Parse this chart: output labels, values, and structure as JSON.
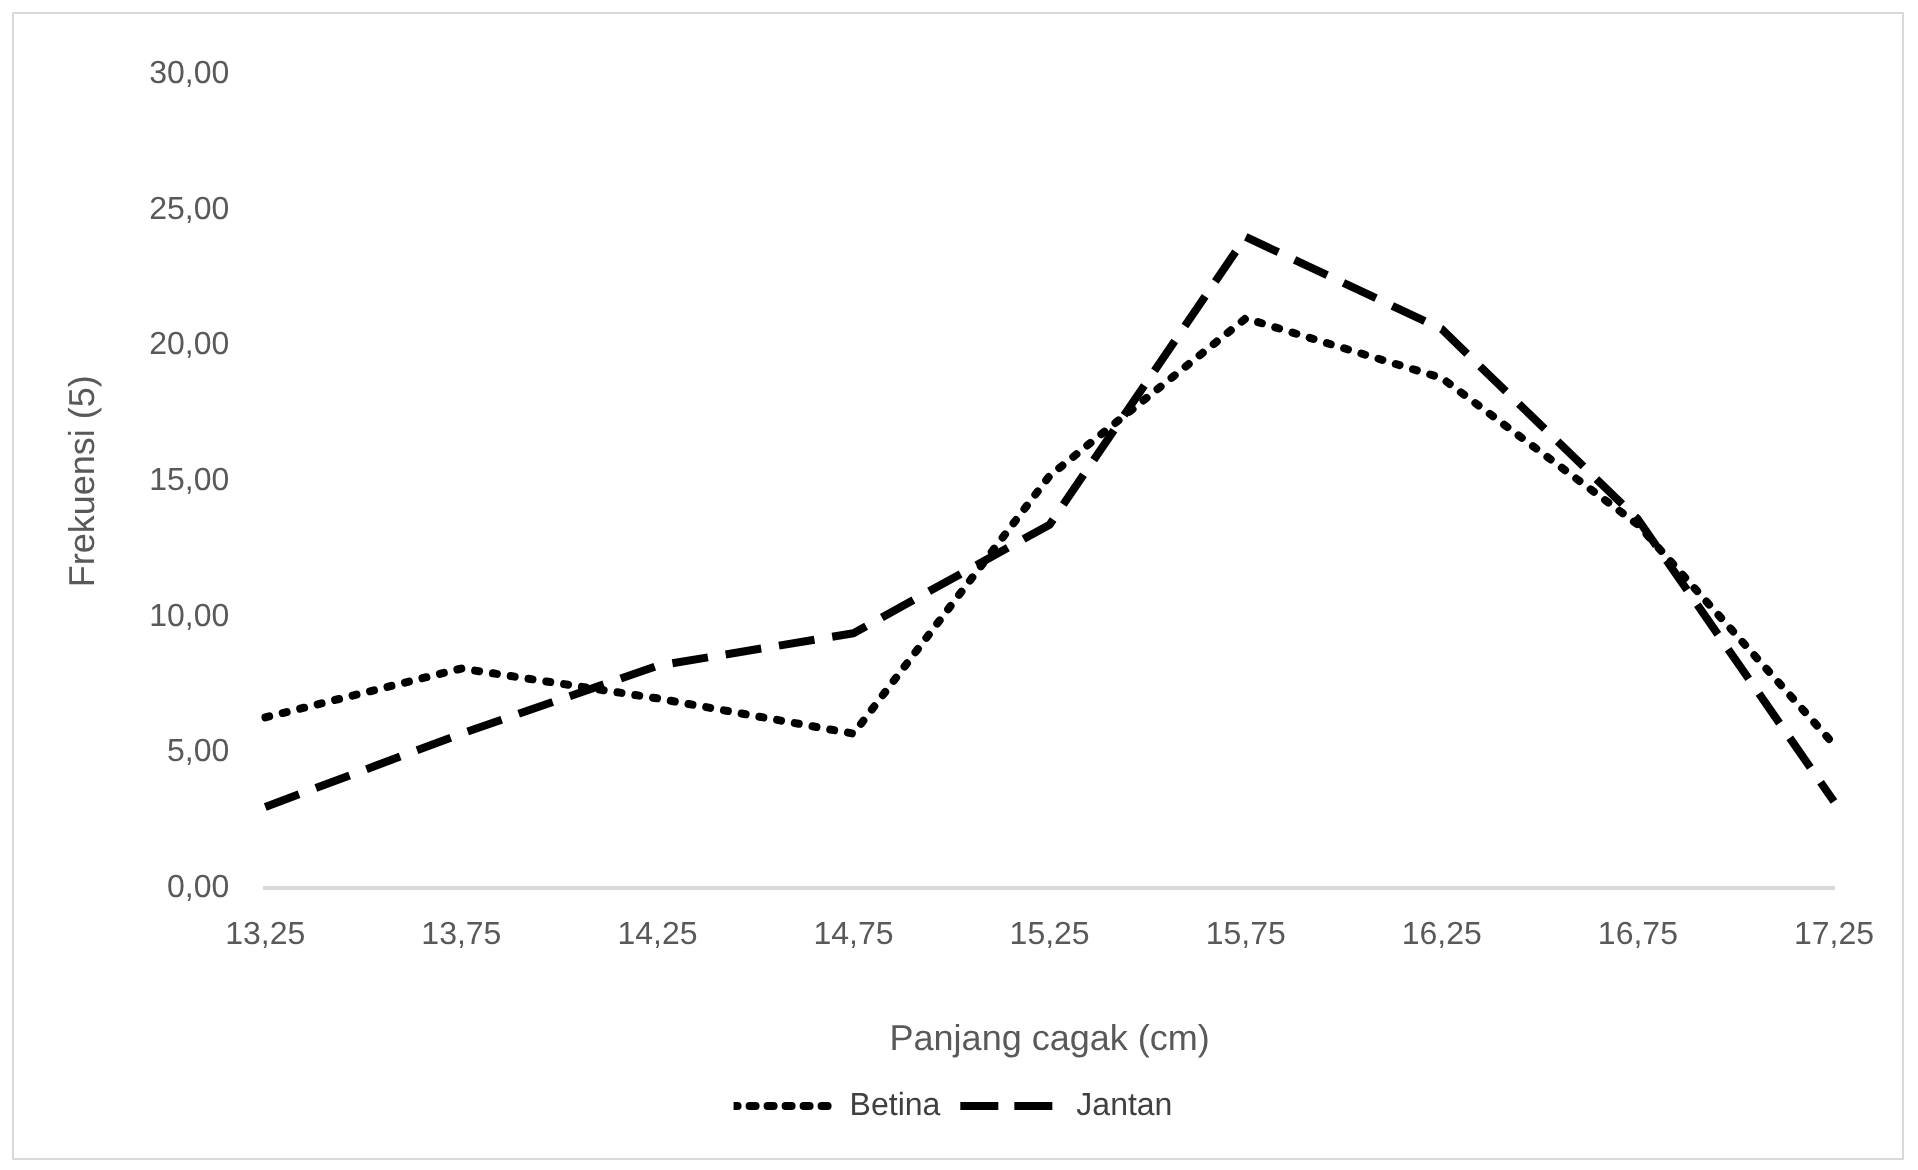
{
  "chart_data": {
    "type": "line",
    "xlabel": "Panjang cagak (cm)",
    "ylabel": "Frekuensi (5)",
    "categories": [
      "13,25",
      "13,75",
      "14,25",
      "14,75",
      "15,25",
      "15,75",
      "16,25",
      "16,75",
      "17,25"
    ],
    "series": [
      {
        "name": "Betina",
        "color": "#000000",
        "line_style": "dotted",
        "values": [
          6.3,
          8.1,
          7.0,
          5.7,
          15.2,
          21.0,
          18.8,
          13.4,
          5.3
        ]
      },
      {
        "name": "Jantan",
        "color": "#000000",
        "line_style": "dashed",
        "values": [
          3.0,
          5.7,
          8.2,
          9.4,
          13.4,
          24.0,
          20.6,
          13.6,
          3.2
        ]
      }
    ],
    "ylim": [
      0,
      30
    ],
    "yticks": [
      {
        "value": 0,
        "label": "0,00"
      },
      {
        "value": 5,
        "label": "5,00"
      },
      {
        "value": 10,
        "label": "10,00"
      },
      {
        "value": 15,
        "label": "15,00"
      },
      {
        "value": 20,
        "label": "20,00"
      },
      {
        "value": 25,
        "label": "25,00"
      },
      {
        "value": 30,
        "label": "30,00"
      }
    ],
    "grid": false,
    "legend": "bottom",
    "marker": "none"
  }
}
